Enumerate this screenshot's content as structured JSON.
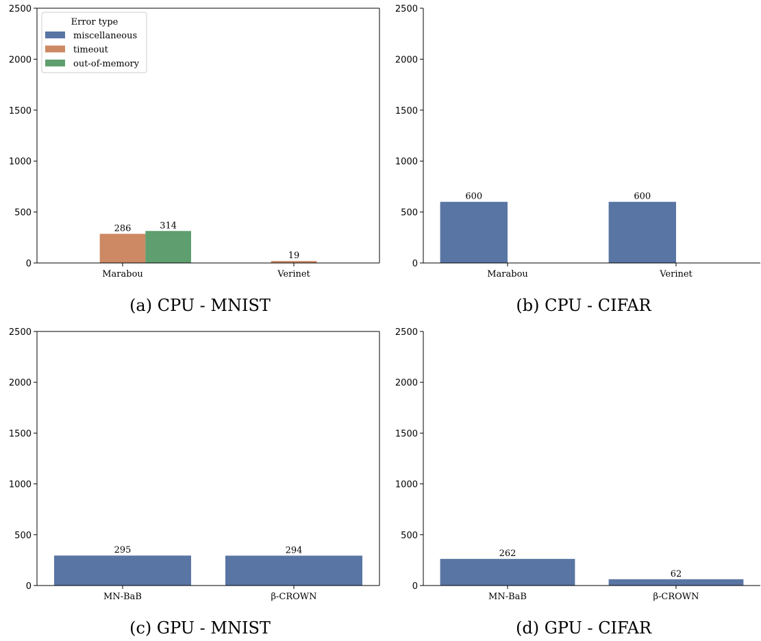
{
  "colors": {
    "miscellaneous": "#5975a4",
    "timeout": "#cc8963",
    "out-of-memory": "#5f9e6e"
  },
  "legend": {
    "title": "Error type",
    "entries": [
      "miscellaneous",
      "timeout",
      "out-of-memory"
    ]
  },
  "chart_data": [
    {
      "type": "bar",
      "caption": "(a) CPU - MNIST",
      "categories": [
        "Marabou",
        "Verinet"
      ],
      "series": [
        {
          "name": "miscellaneous",
          "values": [
            0,
            0
          ]
        },
        {
          "name": "timeout",
          "values": [
            286,
            19
          ]
        },
        {
          "name": "out-of-memory",
          "values": [
            314,
            0
          ]
        }
      ],
      "data_labels": [
        {
          "category": "Marabou",
          "series": "timeout",
          "text": "286"
        },
        {
          "category": "Marabou",
          "series": "out-of-memory",
          "text": "314"
        },
        {
          "category": "Verinet",
          "series": "timeout",
          "text": "19"
        }
      ],
      "ylim": [
        0,
        2500
      ],
      "yticks": [
        "0",
        "500",
        "1000",
        "1500",
        "2000",
        "2500"
      ],
      "legend": "top-left"
    },
    {
      "type": "bar",
      "caption": "(b) CPU - CIFAR",
      "categories": [
        "Marabou",
        "Verinet"
      ],
      "series": [
        {
          "name": "miscellaneous",
          "values": [
            600,
            600
          ]
        },
        {
          "name": "timeout",
          "values": [
            0,
            0
          ]
        }
      ],
      "data_labels": [
        {
          "category": "Marabou",
          "series": "miscellaneous",
          "text": "600"
        },
        {
          "category": "Verinet",
          "series": "miscellaneous",
          "text": "600"
        }
      ],
      "ylim": [
        0,
        2500
      ],
      "yticks": [
        "0",
        "500",
        "1000",
        "1500",
        "2000",
        "2500"
      ]
    },
    {
      "type": "bar",
      "caption": "(c) GPU - MNIST",
      "categories": [
        "MN-BaB",
        "β-CROWN"
      ],
      "series": [
        {
          "name": "miscellaneous",
          "values": [
            295,
            294
          ]
        }
      ],
      "data_labels": [
        {
          "category": "MN-BaB",
          "series": "miscellaneous",
          "text": "295"
        },
        {
          "category": "β-CROWN",
          "series": "miscellaneous",
          "text": "294"
        }
      ],
      "ylim": [
        0,
        2500
      ],
      "yticks": [
        "0",
        "500",
        "1000",
        "1500",
        "2000",
        "2500"
      ]
    },
    {
      "type": "bar",
      "caption": "(d) GPU - CIFAR",
      "categories": [
        "MN-BaB",
        "β-CROWN"
      ],
      "series": [
        {
          "name": "miscellaneous",
          "values": [
            262,
            62
          ]
        }
      ],
      "data_labels": [
        {
          "category": "MN-BaB",
          "series": "miscellaneous",
          "text": "262"
        },
        {
          "category": "β-CROWN",
          "series": "miscellaneous",
          "text": "62"
        }
      ],
      "ylim": [
        0,
        2500
      ],
      "yticks": [
        "0",
        "500",
        "1000",
        "1500",
        "2000",
        "2500"
      ]
    }
  ]
}
